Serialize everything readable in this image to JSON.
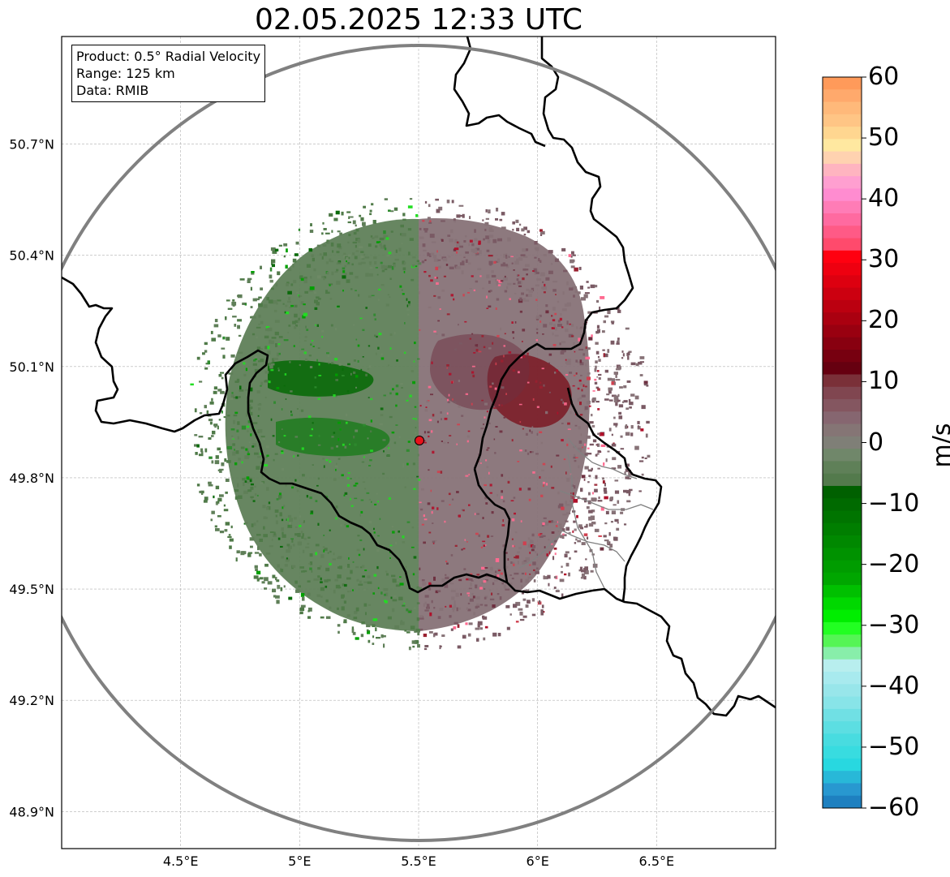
{
  "title": "02.05.2025 12:33 UTC",
  "info_box": {
    "product": "Product: 0.5° Radial Velocity",
    "range": "Range: 125 km",
    "data": "Data: RMIB"
  },
  "map": {
    "projection": "lon/lat",
    "lon_range": [
      4.0,
      7.0
    ],
    "lat_range": [
      48.8,
      50.99
    ],
    "gridlines": true,
    "radar_site": {
      "lon": 5.505,
      "lat": 49.914
    },
    "range_ring_km": 125,
    "lon_ticks": [
      {
        "value": 4.5,
        "label": "4.5°E"
      },
      {
        "value": 5.0,
        "label": "5°E"
      },
      {
        "value": 5.5,
        "label": "5.5°E"
      },
      {
        "value": 6.0,
        "label": "6°E"
      },
      {
        "value": 6.5,
        "label": "6.5°E"
      }
    ],
    "lat_ticks": [
      {
        "value": 50.7,
        "label": "50.7°N"
      },
      {
        "value": 50.4,
        "label": "50.4°N"
      },
      {
        "value": 50.1,
        "label": "50.1°N"
      },
      {
        "value": 49.8,
        "label": "49.8°N"
      },
      {
        "value": 49.5,
        "label": "49.5°N"
      },
      {
        "value": 49.2,
        "label": "49.2°N"
      },
      {
        "value": 48.9,
        "label": "48.9°N"
      }
    ],
    "colors": {
      "border": "#000000",
      "admin_border": "#808080",
      "range_ring": "#808080",
      "radar_marker": "#e8121b",
      "grid": "#b0b0b0"
    }
  },
  "colorbar": {
    "label": "m/s",
    "vmin": -60,
    "vmax": 60,
    "ticks": [
      {
        "value": 60,
        "label": "60"
      },
      {
        "value": 50,
        "label": "50"
      },
      {
        "value": 40,
        "label": "40"
      },
      {
        "value": 30,
        "label": "30"
      },
      {
        "value": 20,
        "label": "20"
      },
      {
        "value": 10,
        "label": "10"
      },
      {
        "value": 0,
        "label": "0"
      },
      {
        "value": -10,
        "label": "−10"
      },
      {
        "value": -20,
        "label": "−20"
      },
      {
        "value": -30,
        "label": "−30"
      },
      {
        "value": -40,
        "label": "−40"
      },
      {
        "value": -50,
        "label": "−50"
      },
      {
        "value": -60,
        "label": "−60"
      }
    ],
    "bins_top_to_bottom": [
      "#ff9a5a",
      "#ffa96c",
      "#ffb97a",
      "#ffc585",
      "#ffd690",
      "#ffe8a0",
      "#ffd2b0",
      "#ffb4c0",
      "#ff9fd0",
      "#ff8cd0",
      "#ff7cb6",
      "#ff6aa0",
      "#ff5a86",
      "#ff4a6c",
      "#ff0010",
      "#ee0010",
      "#dd0010",
      "#cc0010",
      "#bb0010",
      "#aa0010",
      "#990010",
      "#880010",
      "#770010",
      "#660010",
      "#7a3038",
      "#804650",
      "#845660",
      "#866670",
      "#857575",
      "#7f7f77",
      "#70876a",
      "#5f8058",
      "#537a4c",
      "#006000",
      "#006a00",
      "#007400",
      "#007e00",
      "#008800",
      "#009200",
      "#009c00",
      "#00a600",
      "#00c000",
      "#00d800",
      "#00ee00",
      "#22ff22",
      "#55f555",
      "#88eeaa",
      "#b8eeee",
      "#a8eaee",
      "#98e6ea",
      "#88e4e8",
      "#70e0e4",
      "#5cdee2",
      "#48dce0",
      "#38dce0",
      "#28d8e0",
      "#28b8d8",
      "#2898d0",
      "#1e80c0"
    ]
  }
}
